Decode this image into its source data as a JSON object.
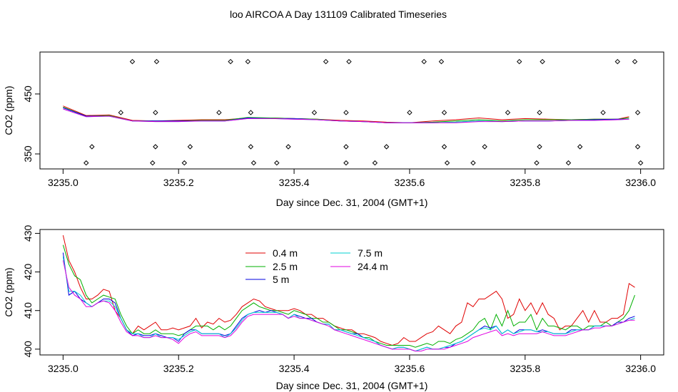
{
  "figure_title": "loo AIRCOA A  Day 131109  Calibrated Timeseries",
  "chart_data": [
    {
      "type": "line",
      "xlabel": "Day since Dec. 31, 2004 (GMT+1)",
      "ylabel": "CO2 (ppm)",
      "xlim": [
        3234.96,
        3236.04
      ],
      "ylim": [
        325,
        520
      ],
      "x_ticks": [
        "3235.0",
        "3235.2",
        "3235.4",
        "3235.6",
        "3235.8",
        "3236.0"
      ],
      "y_ticks": [
        "350",
        "450"
      ],
      "colors": [
        "#e00000",
        "#00b000",
        "#0000e0",
        "#00d0d0",
        "#e000e0"
      ],
      "series_x": [
        3235.0,
        3235.04,
        3235.08,
        3235.12,
        3235.16,
        3235.2,
        3235.24,
        3235.28,
        3235.32,
        3235.36,
        3235.4,
        3235.44,
        3235.48,
        3235.52,
        3235.56,
        3235.6,
        3235.64,
        3235.68,
        3235.72,
        3235.76,
        3235.8,
        3235.84,
        3235.88,
        3235.92,
        3235.96,
        3235.98
      ],
      "series": [
        {
          "values": [
            430,
            414,
            415,
            406,
            405,
            406,
            407,
            407,
            410,
            410,
            409,
            408,
            406,
            405,
            403,
            402,
            405,
            407,
            410,
            407,
            409,
            408,
            407,
            408,
            408,
            412
          ]
        },
        {
          "values": [
            428,
            413,
            414,
            405,
            405,
            405,
            406,
            406,
            411,
            410,
            409,
            408,
            405,
            404,
            402,
            402,
            403,
            405,
            407,
            405,
            407,
            407,
            407,
            408,
            408,
            410
          ]
        },
        {
          "values": [
            427,
            413,
            413,
            405,
            405,
            405,
            405,
            405,
            410,
            409,
            409,
            407,
            405,
            404,
            402,
            402,
            402,
            403,
            405,
            404,
            405,
            405,
            406,
            407,
            408,
            408
          ]
        },
        {
          "values": [
            425,
            412,
            413,
            405,
            404,
            404,
            405,
            405,
            409,
            409,
            408,
            407,
            405,
            404,
            402,
            402,
            402,
            403,
            405,
            404,
            405,
            405,
            406,
            406,
            407,
            408
          ]
        },
        {
          "values": [
            425,
            412,
            413,
            405,
            404,
            404,
            405,
            405,
            409,
            409,
            408,
            407,
            405,
            404,
            402,
            402,
            402,
            402,
            404,
            404,
            405,
            405,
            406,
            406,
            407,
            408
          ]
        }
      ],
      "points": [
        {
          "x": 3235.04,
          "y": 335
        },
        {
          "x": 3235.05,
          "y": 362
        },
        {
          "x": 3235.1,
          "y": 419
        },
        {
          "x": 3235.12,
          "y": 504
        },
        {
          "x": 3235.155,
          "y": 335
        },
        {
          "x": 3235.16,
          "y": 362
        },
        {
          "x": 3235.16,
          "y": 419
        },
        {
          "x": 3235.162,
          "y": 504
        },
        {
          "x": 3235.21,
          "y": 335
        },
        {
          "x": 3235.22,
          "y": 362
        },
        {
          "x": 3235.27,
          "y": 419
        },
        {
          "x": 3235.29,
          "y": 504
        },
        {
          "x": 3235.32,
          "y": 504
        },
        {
          "x": 3235.325,
          "y": 362
        },
        {
          "x": 3235.325,
          "y": 419
        },
        {
          "x": 3235.33,
          "y": 335
        },
        {
          "x": 3235.37,
          "y": 335
        },
        {
          "x": 3235.39,
          "y": 362
        },
        {
          "x": 3235.435,
          "y": 419
        },
        {
          "x": 3235.455,
          "y": 504
        },
        {
          "x": 3235.49,
          "y": 335
        },
        {
          "x": 3235.49,
          "y": 362
        },
        {
          "x": 3235.49,
          "y": 419
        },
        {
          "x": 3235.495,
          "y": 504
        },
        {
          "x": 3235.54,
          "y": 335
        },
        {
          "x": 3235.56,
          "y": 362
        },
        {
          "x": 3235.6,
          "y": 419
        },
        {
          "x": 3235.625,
          "y": 504
        },
        {
          "x": 3235.655,
          "y": 504
        },
        {
          "x": 3235.66,
          "y": 362
        },
        {
          "x": 3235.66,
          "y": 419
        },
        {
          "x": 3235.665,
          "y": 335
        },
        {
          "x": 3235.71,
          "y": 335
        },
        {
          "x": 3235.73,
          "y": 362
        },
        {
          "x": 3235.77,
          "y": 419
        },
        {
          "x": 3235.79,
          "y": 504
        },
        {
          "x": 3235.82,
          "y": 335
        },
        {
          "x": 3235.825,
          "y": 362
        },
        {
          "x": 3235.825,
          "y": 419
        },
        {
          "x": 3235.83,
          "y": 504
        },
        {
          "x": 3235.875,
          "y": 335
        },
        {
          "x": 3235.895,
          "y": 362
        },
        {
          "x": 3235.935,
          "y": 419
        },
        {
          "x": 3235.96,
          "y": 504
        },
        {
          "x": 3235.99,
          "y": 504
        },
        {
          "x": 3235.995,
          "y": 362
        },
        {
          "x": 3235.995,
          "y": 419
        },
        {
          "x": 3236.0,
          "y": 335
        }
      ]
    },
    {
      "type": "line",
      "xlabel": "Day since Dec. 31, 2004 (GMT+1)",
      "ylabel": "CO2 (ppm)",
      "xlim": [
        3234.96,
        3236.04
      ],
      "ylim": [
        398.5,
        431
      ],
      "x_ticks": [
        "3235.0",
        "3235.2",
        "3235.4",
        "3235.6",
        "3235.8",
        "3236.0"
      ],
      "y_ticks": [
        "400",
        "410",
        "420",
        "430"
      ],
      "legend_position": "top-center",
      "series_x": [
        3235.0,
        3235.01,
        3235.02,
        3235.03,
        3235.04,
        3235.05,
        3235.06,
        3235.07,
        3235.08,
        3235.09,
        3235.1,
        3235.11,
        3235.12,
        3235.13,
        3235.14,
        3235.15,
        3235.16,
        3235.17,
        3235.18,
        3235.19,
        3235.2,
        3235.21,
        3235.22,
        3235.23,
        3235.24,
        3235.25,
        3235.26,
        3235.27,
        3235.28,
        3235.29,
        3235.3,
        3235.31,
        3235.32,
        3235.33,
        3235.34,
        3235.35,
        3235.36,
        3235.37,
        3235.38,
        3235.39,
        3235.4,
        3235.41,
        3235.42,
        3235.43,
        3235.44,
        3235.45,
        3235.46,
        3235.47,
        3235.48,
        3235.49,
        3235.5,
        3235.51,
        3235.52,
        3235.53,
        3235.54,
        3235.55,
        3235.56,
        3235.57,
        3235.58,
        3235.59,
        3235.6,
        3235.61,
        3235.62,
        3235.63,
        3235.64,
        3235.65,
        3235.66,
        3235.67,
        3235.68,
        3235.69,
        3235.7,
        3235.71,
        3235.72,
        3235.73,
        3235.74,
        3235.75,
        3235.76,
        3235.77,
        3235.78,
        3235.79,
        3235.8,
        3235.81,
        3235.82,
        3235.83,
        3235.84,
        3235.85,
        3235.86,
        3235.87,
        3235.88,
        3235.89,
        3235.9,
        3235.91,
        3235.92,
        3235.93,
        3235.94,
        3235.95,
        3235.96,
        3235.97,
        3235.98,
        3235.99
      ],
      "series": [
        {
          "name": "0.4 m",
          "color": "#e00000",
          "values": [
            429.5,
            423,
            420,
            416,
            413,
            413,
            414,
            415.5,
            415,
            410,
            408,
            405,
            404,
            406,
            405,
            406,
            407,
            405,
            405,
            405.5,
            405,
            405.5,
            406,
            408,
            405.5,
            407,
            406.5,
            408,
            407,
            407.5,
            409,
            411,
            412,
            413,
            412.5,
            411,
            410.5,
            410,
            410,
            410,
            410.5,
            410,
            409,
            409,
            408,
            408,
            407,
            406,
            405.5,
            405,
            405,
            404,
            404,
            403.5,
            403,
            402,
            401.5,
            401,
            401.5,
            403,
            402,
            402,
            403,
            404,
            404.5,
            406,
            405,
            404,
            406,
            407,
            412,
            411,
            413,
            413,
            414,
            415,
            413,
            408,
            409,
            413,
            410,
            412,
            409,
            412,
            409,
            408,
            405,
            406,
            406,
            408,
            410,
            407,
            410,
            407,
            407,
            408,
            408,
            409,
            417,
            416
          ]
        },
        {
          "name": "2.5 m",
          "color": "#00b000",
          "values": [
            427,
            422,
            419,
            418,
            414,
            412,
            413,
            414,
            413.5,
            413,
            409,
            406,
            404,
            405,
            404,
            404,
            405,
            404,
            404,
            404,
            403.5,
            404,
            405,
            406,
            406,
            406,
            405,
            406,
            405,
            406,
            408,
            410,
            411,
            412,
            411,
            410.5,
            410,
            410,
            409.5,
            409,
            410,
            409.5,
            409,
            408,
            408,
            407,
            407,
            406,
            405,
            405,
            404.5,
            404,
            403,
            403,
            402,
            401.5,
            401,
            401,
            401,
            401,
            401,
            400.5,
            401,
            401.5,
            401,
            402,
            402,
            401.5,
            402.5,
            403,
            404,
            405,
            407,
            408,
            405,
            409,
            406,
            410,
            406,
            407,
            407,
            409,
            405,
            408,
            406,
            406,
            405.5,
            405,
            406,
            406,
            405,
            406,
            406,
            406,
            407,
            406,
            407,
            408,
            410,
            414
          ]
        },
        {
          "name": "5 m",
          "color": "#0000e0",
          "values": [
            425,
            414,
            415,
            413,
            412,
            411,
            412,
            413,
            413,
            412,
            408,
            405,
            403.5,
            404,
            403.5,
            403.5,
            404,
            403.5,
            403,
            403,
            402,
            404,
            405,
            405,
            404,
            404,
            404,
            404,
            403.5,
            404,
            406,
            408,
            409,
            409.5,
            410,
            409.5,
            410,
            409.5,
            409,
            408,
            409,
            408.5,
            408,
            408,
            407,
            406.5,
            406.5,
            405,
            405,
            404.5,
            404,
            404,
            403,
            402.5,
            402,
            401,
            400.5,
            400,
            400.5,
            400.5,
            400,
            399.5,
            400,
            400.5,
            400,
            400,
            400.5,
            400.5,
            401.5,
            402,
            403,
            404,
            405,
            406,
            405.5,
            406,
            404,
            405,
            404,
            405,
            405,
            405,
            404.5,
            405,
            404.5,
            404,
            404,
            404,
            405,
            405,
            405,
            405,
            406,
            406,
            406,
            406,
            407,
            407,
            408,
            408.5
          ]
        },
        {
          "name": "7.5 m",
          "color": "#00d0d0",
          "values": [
            424,
            415,
            415,
            414,
            412,
            411,
            412,
            412.5,
            412.5,
            411,
            408,
            405,
            404,
            404,
            403,
            403,
            404,
            403,
            403,
            403,
            402.5,
            403.5,
            404.5,
            405,
            404,
            404,
            404,
            404,
            403,
            404,
            405.5,
            407.5,
            409,
            409.5,
            409.5,
            409.5,
            409.5,
            409.5,
            409,
            408,
            409,
            408,
            408,
            407.5,
            407,
            406.5,
            406.5,
            405,
            405,
            404.5,
            404,
            403.5,
            403,
            402.5,
            402,
            401,
            400.5,
            400,
            400.5,
            400.5,
            400,
            399.5,
            400,
            400.5,
            400,
            400,
            400.5,
            401,
            401.5,
            402,
            403,
            404,
            405,
            405.5,
            405,
            406,
            404,
            405,
            404,
            404.5,
            405,
            405,
            404.5,
            404.5,
            404.5,
            404,
            404,
            404,
            404.5,
            405,
            405,
            405,
            406,
            406,
            406,
            406,
            406.5,
            407,
            407.5,
            408
          ]
        },
        {
          "name": "24.4 m",
          "color": "#e000e0",
          "values": [
            423,
            416,
            414,
            413,
            411,
            411,
            412,
            412.5,
            412,
            410,
            407,
            404.5,
            403.5,
            403.5,
            403,
            403,
            403.5,
            403,
            403,
            402.5,
            401.5,
            403,
            404,
            404.5,
            403.5,
            403.5,
            403.5,
            403.5,
            403,
            403.5,
            405,
            407,
            408.5,
            409,
            409,
            409,
            409,
            409,
            409,
            408,
            408.5,
            408,
            408,
            407.5,
            407,
            406.5,
            406,
            405,
            404.5,
            404,
            403.5,
            403,
            402.5,
            402,
            401.5,
            401,
            400.5,
            400,
            400,
            400,
            400,
            399.5,
            399.5,
            400,
            400,
            400,
            400,
            400.5,
            401,
            401.5,
            402,
            403,
            403.5,
            404,
            404.5,
            405,
            403.5,
            404,
            403.5,
            404,
            404,
            404,
            404,
            404.5,
            404,
            403.5,
            403.5,
            403.5,
            404,
            404.5,
            405,
            405,
            405.5,
            405.5,
            406,
            406,
            406.5,
            407,
            407.5,
            407.5
          ]
        }
      ]
    }
  ]
}
